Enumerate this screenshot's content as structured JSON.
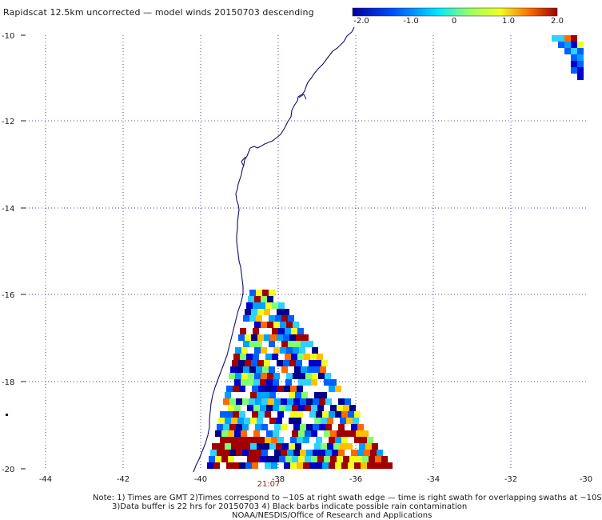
{
  "header": {
    "title": "Rapidscat 12.5km uncorrected — model winds 20150703 descending"
  },
  "colorbar": {
    "labels": [
      "-2.0",
      "-1.0",
      "0",
      "1.0",
      "2.0"
    ],
    "colors": [
      "#0000a0",
      "#0050ff",
      "#00e8ff",
      "#f0ff20",
      "#ff7000",
      "#a00000"
    ]
  },
  "map": {
    "lon_labels": [
      "-44",
      "-42",
      "-40",
      "-38",
      "-36",
      "-34",
      "-32",
      "-30"
    ],
    "lat_labels": [
      "-10",
      "-12",
      "-14",
      "-16",
      "-18",
      "-20"
    ],
    "time_label": "21:07",
    "coastline_color": "#10106a",
    "grid_color": "#4a4a9a"
  },
  "footer": {
    "note1": "Note: 1) Times are GMT 2)Times correspond to −10S at right swath edge — time is right swath for overlapping swaths at −10S",
    "note2": "3)Data buffer is 22 hrs for 20150703 4) Black barbs indicate possible rain contamination",
    "note3": "NOAA/NESDIS/Office of Research and Applications"
  }
}
